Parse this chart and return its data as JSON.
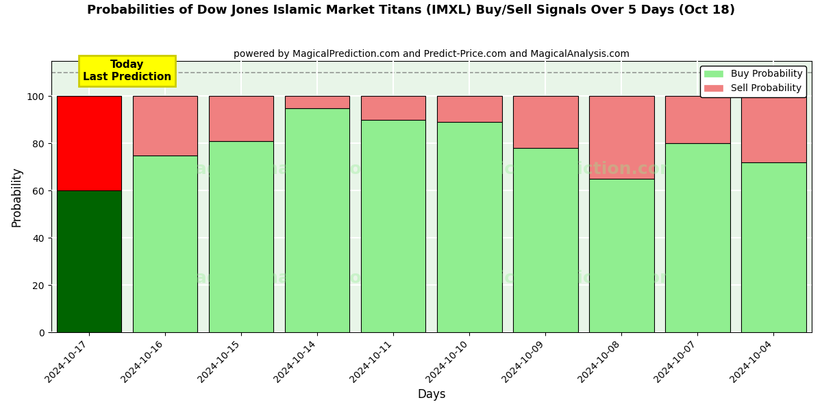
{
  "title": "Probabilities of Dow Jones Islamic Market Titans (IMXL) Buy/Sell Signals Over 5 Days (Oct 18)",
  "subtitle": "powered by MagicalPrediction.com and Predict-Price.com and MagicalAnalysis.com",
  "xlabel": "Days",
  "ylabel": "Probability",
  "categories": [
    "2024-10-17",
    "2024-10-16",
    "2024-10-15",
    "2024-10-14",
    "2024-10-11",
    "2024-10-10",
    "2024-10-09",
    "2024-10-08",
    "2024-10-07",
    "2024-10-04"
  ],
  "buy_values": [
    60,
    75,
    81,
    95,
    90,
    89,
    78,
    65,
    80,
    72
  ],
  "sell_values": [
    40,
    25,
    19,
    5,
    10,
    11,
    22,
    35,
    20,
    28
  ],
  "today_buy_color": "#006400",
  "today_sell_color": "#FF0000",
  "normal_buy_color": "#90EE90",
  "normal_sell_color": "#F08080",
  "bar_edge_color": "#000000",
  "ylim": [
    0,
    115
  ],
  "yticks": [
    0,
    20,
    40,
    60,
    80,
    100
  ],
  "dashed_line_y": 110,
  "annotation_text": "Today\nLast Prediction",
  "annotation_bg": "#FFFF00",
  "annotation_edge": "#CCCC00",
  "legend_buy_label": "Buy Probability",
  "legend_sell_label": "Sell Probability",
  "figsize": [
    12,
    6
  ],
  "dpi": 100,
  "bg_color": "#ffffff",
  "plot_bg_color": "#ffffff",
  "grid_color": "#cccccc",
  "watermark_color_1": "#90EE90",
  "watermark_color_2": "#F08080"
}
